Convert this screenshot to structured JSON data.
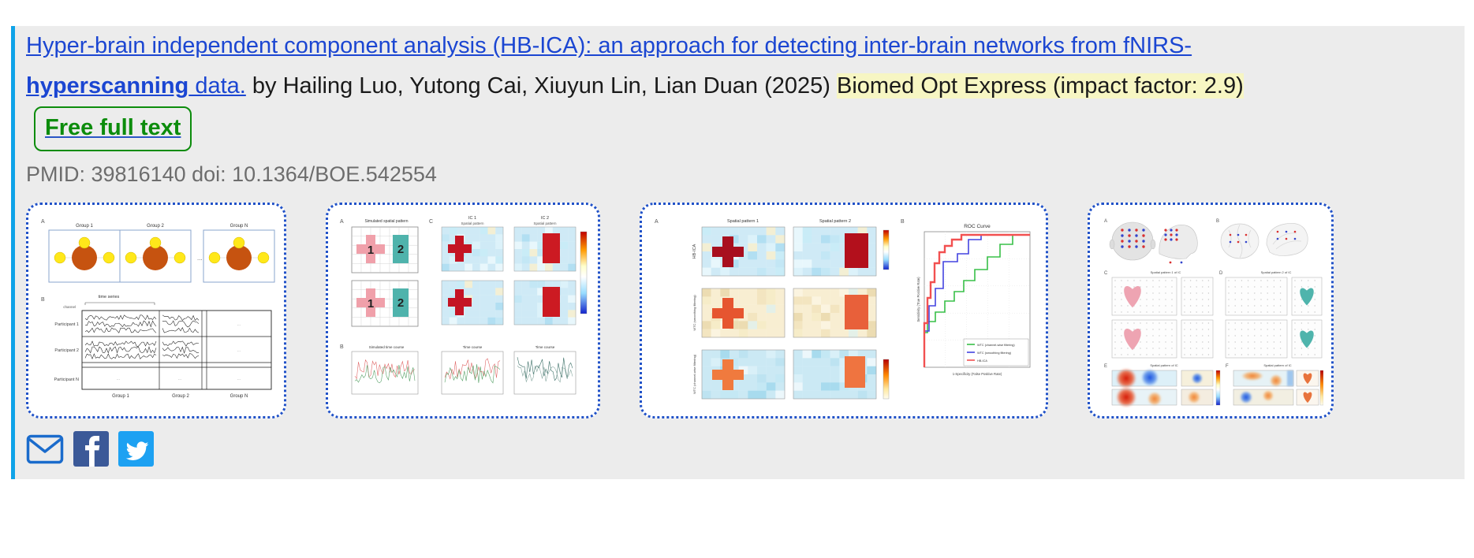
{
  "publication": {
    "title_part1": "Hyper-brain independent component analysis (HB-ICA): an approach for detecting inter-brain networks from fNIRS-",
    "title_bold": "hyperscanning",
    "title_part2": " data.",
    "byline": " by Hailing Luo, Yutong Cai, Xiuyun Lin, Lian Duan (2025) ",
    "journal": "Biomed Opt Express (impact factor: 2.9)",
    "free_full_text": "Free full text",
    "ids": "PMID: 39816140 doi: 10.1364/BOE.542554"
  },
  "colors": {
    "link_blue": "#1b46d2",
    "highlight_yellow": "#f7f6c3",
    "free_text_green": "#0c8c0c",
    "underline_blue": "#2a56c6",
    "left_bar_azure": "#0fa3e8",
    "thumb_border_blue": "#2152c8",
    "meta_gray": "#6d6d6d",
    "panel_bg": "#ececec",
    "facebook_blue": "#3b5998",
    "twitter_blue": "#1da1f2",
    "email_blue": "#1a6bcc"
  },
  "icons": {
    "email": "envelope-icon",
    "facebook": "facebook-icon",
    "twitter": "twitter-icon"
  },
  "figures": {
    "letters": {
      "a": "A",
      "b": "B",
      "c": "C",
      "d": "D",
      "e": "E",
      "f": "F"
    },
    "fig1": {
      "groups": [
        "Group 1",
        "Group 2",
        "Group N"
      ],
      "participants": [
        "Participant 1",
        "Participant 2",
        "Participant N"
      ],
      "time_series_label": "time series",
      "channel_label": "channel",
      "ellipsis": "..."
    },
    "fig2": {
      "sim_label": "Simulated spatial pattern",
      "ic1": "IC 1",
      "ic2": "IC 2",
      "spatial_pattern": "Spatial pattern",
      "cell1": "1",
      "cell2": "2",
      "plot1": "Simulated time course",
      "plot2": "Time course",
      "plot3": "Time course"
    },
    "fig3": {
      "col1": "Spatial pattern 1",
      "col2": "Spatial pattern 2",
      "row1": "HB-ICA",
      "row2": "WTC (smoothing filtering)",
      "row3": "WTC (channel-wise filtering)",
      "roc_title": "ROC Curve",
      "roc_xlabel": "1-Specificity (False Positive Rate)",
      "roc_ylabel": "Sensitivity (True Positive Rate)",
      "legend": [
        "WTC (channel-wise filtering)",
        "WTC (smoothing filtering)",
        "HB-ICA"
      ]
    },
    "fig4": {
      "c_label": "Spatial pattern 1 of IC",
      "d_label": "Spatial pattern 2 of IC",
      "e_label": "Spatial pattern of IC",
      "f_label": "Spatial pattern of IC"
    }
  }
}
